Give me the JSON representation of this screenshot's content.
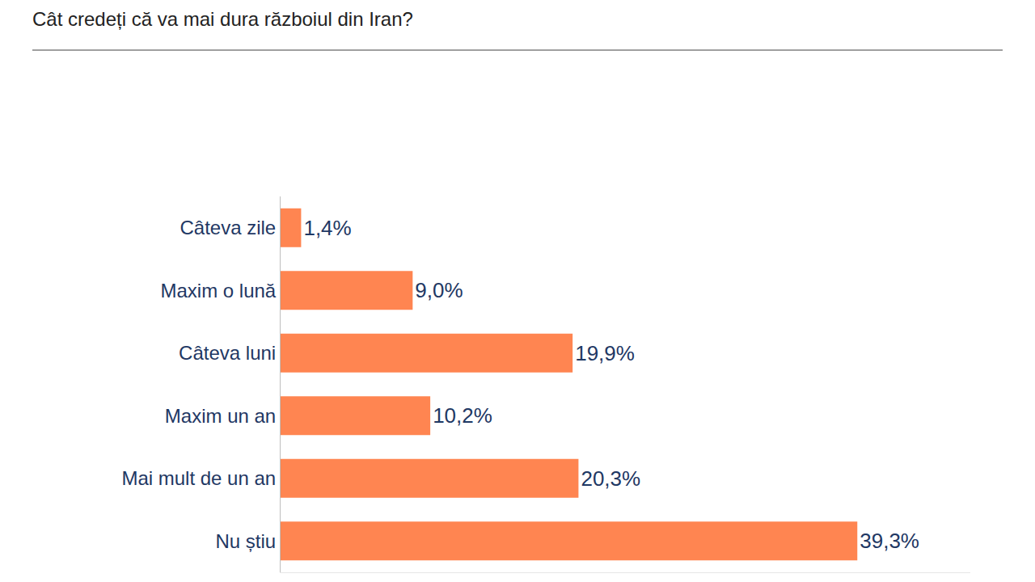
{
  "chart_data": {
    "type": "bar",
    "orientation": "horizontal",
    "title": "Cât credeți că va mai dura războiul din Iran?",
    "categories": [
      "Câteva zile",
      "Maxim o lună",
      "Câteva luni",
      "Maxim un an",
      "Mai mult de un an",
      "Nu știu"
    ],
    "values": [
      1.4,
      9.0,
      19.9,
      10.2,
      20.3,
      39.3
    ],
    "value_labels": [
      "1,4%",
      "9,0%",
      "19,9%",
      "10,2%",
      "20,3%",
      "39,3%"
    ],
    "color": "#ff8551",
    "xlim": [
      0,
      47
    ],
    "grid": false,
    "data_labels": true,
    "tick_labels": "y"
  }
}
